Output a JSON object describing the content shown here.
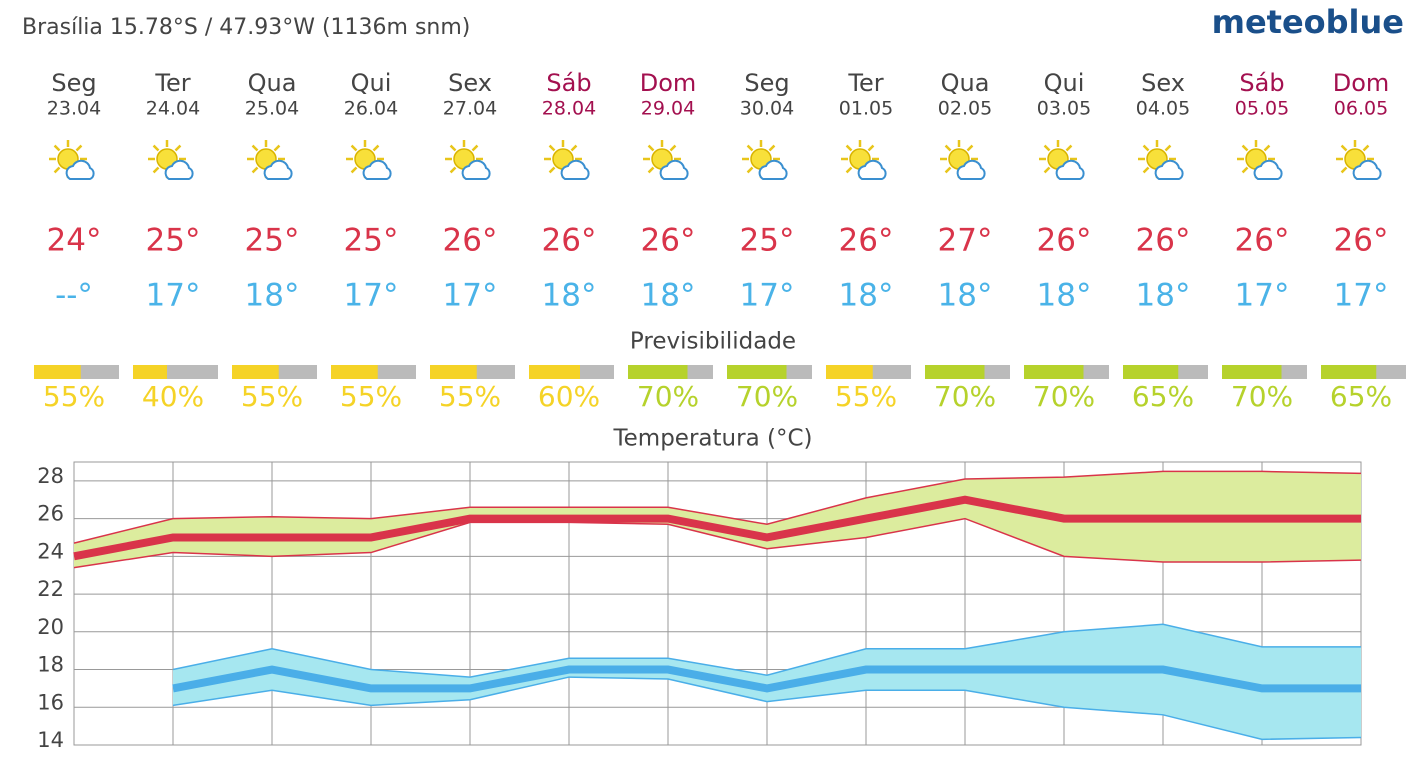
{
  "header": {
    "location": "Brasília  15.78°S / 47.93°W (1136m snm)",
    "logo": "meteoblue"
  },
  "days": [
    {
      "name": "Seg",
      "date": "23.04",
      "weekend": false,
      "max": "24°",
      "min": "--°",
      "predictability": {
        "value": 55,
        "label": "55%"
      },
      "color": "#f5d327"
    },
    {
      "name": "Ter",
      "date": "24.04",
      "weekend": false,
      "max": "25°",
      "min": "17°",
      "predictability": {
        "value": 40,
        "label": "40%"
      },
      "color": "#f5d327"
    },
    {
      "name": "Qua",
      "date": "25.04",
      "weekend": false,
      "max": "25°",
      "min": "18°",
      "predictability": {
        "value": 55,
        "label": "55%"
      },
      "color": "#f5d327"
    },
    {
      "name": "Qui",
      "date": "26.04",
      "weekend": false,
      "max": "25°",
      "min": "17°",
      "predictability": {
        "value": 55,
        "label": "55%"
      },
      "color": "#f5d327"
    },
    {
      "name": "Sex",
      "date": "27.04",
      "weekend": false,
      "max": "26°",
      "min": "17°",
      "predictability": {
        "value": 55,
        "label": "55%"
      },
      "color": "#f5d327"
    },
    {
      "name": "Sáb",
      "date": "28.04",
      "weekend": true,
      "max": "26°",
      "min": "18°",
      "predictability": {
        "value": 60,
        "label": "60%"
      },
      "color": "#f5d327"
    },
    {
      "name": "Dom",
      "date": "29.04",
      "weekend": true,
      "max": "26°",
      "min": "18°",
      "predictability": {
        "value": 70,
        "label": "70%"
      },
      "color": "#b6d22c"
    },
    {
      "name": "Seg",
      "date": "30.04",
      "weekend": false,
      "max": "25°",
      "min": "17°",
      "predictability": {
        "value": 70,
        "label": "70%"
      },
      "color": "#b6d22c"
    },
    {
      "name": "Ter",
      "date": "01.05",
      "weekend": false,
      "max": "26°",
      "min": "18°",
      "predictability": {
        "value": 55,
        "label": "55%"
      },
      "color": "#f5d327"
    },
    {
      "name": "Qua",
      "date": "02.05",
      "weekend": false,
      "max": "27°",
      "min": "18°",
      "predictability": {
        "value": 70,
        "label": "70%"
      },
      "color": "#b6d22c"
    },
    {
      "name": "Qui",
      "date": "03.05",
      "weekend": false,
      "max": "26°",
      "min": "18°",
      "predictability": {
        "value": 70,
        "label": "70%"
      },
      "color": "#b6d22c"
    },
    {
      "name": "Sex",
      "date": "04.05",
      "weekend": false,
      "max": "26°",
      "min": "18°",
      "predictability": {
        "value": 65,
        "label": "65%"
      },
      "color": "#b6d22c"
    },
    {
      "name": "Sáb",
      "date": "05.05",
      "weekend": true,
      "max": "26°",
      "min": "17°",
      "predictability": {
        "value": 70,
        "label": "70%"
      },
      "color": "#b6d22c"
    },
    {
      "name": "Dom",
      "date": "06.05",
      "weekend": true,
      "max": "26°",
      "min": "17°",
      "predictability": {
        "value": 65,
        "label": "65%"
      },
      "color": "#b6d22c"
    }
  ],
  "predictability_title": "Previsibilidade",
  "chart_data": {
    "type": "line",
    "title": "Temperatura (°C)",
    "x": [
      0,
      1,
      2,
      3,
      4,
      5,
      6,
      7,
      8,
      9,
      10,
      11,
      12,
      13
    ],
    "xlim": [
      0,
      13
    ],
    "ylim": [
      14,
      29
    ],
    "yticks": [
      14,
      16,
      18,
      20,
      22,
      24,
      26,
      28
    ],
    "grid": true,
    "series": [
      {
        "color": "#d9344a",
        "band_color": "#dcec9e",
        "values": [
          24,
          25,
          25,
          25,
          26,
          26,
          26,
          25,
          26,
          27,
          26,
          26,
          26,
          26
        ],
        "upper": [
          24.7,
          26.0,
          26.1,
          26.0,
          26.6,
          26.6,
          26.6,
          25.7,
          27.1,
          28.1,
          28.2,
          28.5,
          28.5,
          28.4
        ],
        "lower": [
          23.4,
          24.2,
          24.0,
          24.2,
          25.8,
          25.8,
          25.7,
          24.4,
          25.0,
          26.0,
          24.0,
          23.7,
          23.7,
          23.8
        ]
      },
      {
        "color": "#4aaee8",
        "band_color": "#a6e7f0",
        "values": [
          null,
          17,
          18,
          17,
          17,
          18,
          18,
          17,
          18,
          18,
          18,
          18,
          17,
          17
        ],
        "upper": [
          null,
          18.0,
          19.1,
          18.0,
          17.6,
          18.6,
          18.6,
          17.7,
          19.1,
          19.1,
          20.0,
          20.4,
          19.2,
          19.2
        ],
        "lower": [
          null,
          16.1,
          16.9,
          16.1,
          16.4,
          17.6,
          17.5,
          16.3,
          16.9,
          16.9,
          16.0,
          15.6,
          14.3,
          14.4
        ]
      }
    ]
  }
}
